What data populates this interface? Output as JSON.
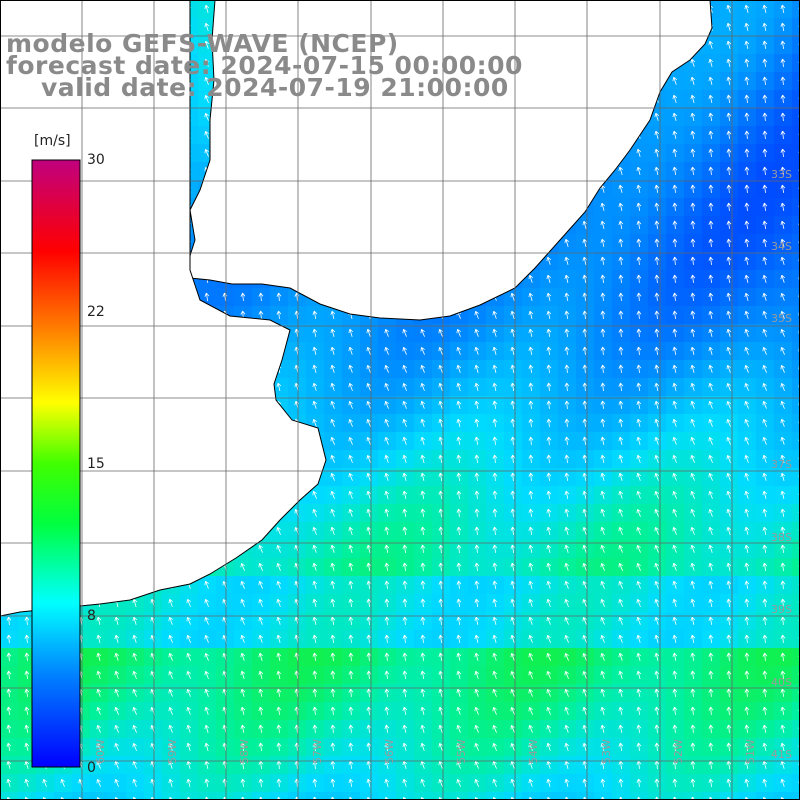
{
  "titles": {
    "line1": "modelo GEFS-WAVE (NCEP)",
    "line2": "forecast date: 2024-07-15 00:00:00",
    "line3": "valid date: 2024-07-19 21:00:00"
  },
  "colorbar": {
    "unit": "[m/s]",
    "min": 0,
    "max": 30,
    "ticks": [
      "30",
      "22",
      "15",
      "8",
      "0"
    ],
    "tick_values": [
      30,
      22,
      15,
      8,
      0
    ]
  },
  "lat_labels": [
    "33S",
    "34S",
    "35S",
    "37S",
    "38S",
    "39S",
    "40S",
    "41S"
  ],
  "lon_labels": [
    "60W",
    "59W",
    "58W",
    "57W",
    "56W",
    "55W",
    "54W",
    "53W",
    "52W",
    "51W"
  ],
  "colors": {
    "land": "#ffffff",
    "coast": "#000000",
    "grid": "#555555",
    "arrow": "#ffffff"
  }
}
